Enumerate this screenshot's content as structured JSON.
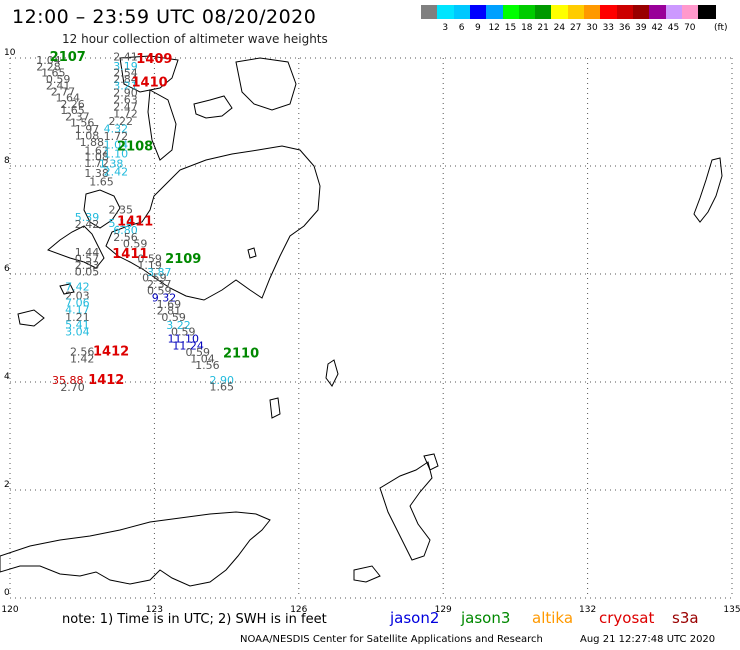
{
  "header": {
    "title": "12:00 – 23:59 UTC 08/20/2020",
    "subtitle": "12 hour collection of altimeter wave heights"
  },
  "scale": {
    "unit": "(ft)",
    "levels": [
      {
        "label": "",
        "color": "#808080"
      },
      {
        "label": "3",
        "color": "#00e5ff"
      },
      {
        "label": "6",
        "color": "#00c8ff"
      },
      {
        "label": "9",
        "color": "#0000ff"
      },
      {
        "label": "12",
        "color": "#00a0ff"
      },
      {
        "label": "15",
        "color": "#00ff00"
      },
      {
        "label": "18",
        "color": "#00cc00"
      },
      {
        "label": "21",
        "color": "#009900"
      },
      {
        "label": "24",
        "color": "#ffff00"
      },
      {
        "label": "27",
        "color": "#ffcc00"
      },
      {
        "label": "30",
        "color": "#ff9900"
      },
      {
        "label": "33",
        "color": "#ff0000"
      },
      {
        "label": "36",
        "color": "#cc0000"
      },
      {
        "label": "39",
        "color": "#990000"
      },
      {
        "label": "42",
        "color": "#990099"
      },
      {
        "label": "45",
        "color": "#cc99ff"
      },
      {
        "label": "70",
        "color": "#ff99cc"
      },
      {
        "label": "",
        "color": "#000000"
      }
    ]
  },
  "axes": {
    "lon_ticks": [
      "120",
      "123",
      "126",
      "129",
      "132",
      "135"
    ],
    "lat_ticks": [
      "0",
      "2",
      "4",
      "6",
      "8",
      "10"
    ]
  },
  "map": {
    "readings": [
      {
        "text": "1.04",
        "lon": 120.8,
        "lat": 9.89,
        "color": "#555555"
      },
      {
        "text": "2.28",
        "lon": 120.8,
        "lat": 9.77,
        "color": "#555555"
      },
      {
        "text": "1.65",
        "lon": 120.9,
        "lat": 9.66,
        "color": "#555555"
      },
      {
        "text": "0.59",
        "lon": 121.0,
        "lat": 9.54,
        "color": "#555555"
      },
      {
        "text": "2.41",
        "lon": 121.0,
        "lat": 9.42,
        "color": "#555555"
      },
      {
        "text": "2.77",
        "lon": 121.1,
        "lat": 9.31,
        "color": "#555555"
      },
      {
        "text": "1.64",
        "lon": 121.2,
        "lat": 9.19,
        "color": "#555555"
      },
      {
        "text": "2.26",
        "lon": 121.3,
        "lat": 9.07,
        "color": "#555555"
      },
      {
        "text": "1.65",
        "lon": 121.3,
        "lat": 8.96,
        "color": "#555555"
      },
      {
        "text": "2.37",
        "lon": 121.4,
        "lat": 8.84,
        "color": "#555555"
      },
      {
        "text": "1.56",
        "lon": 121.5,
        "lat": 8.73,
        "color": "#555555"
      },
      {
        "text": "1.97",
        "lon": 121.6,
        "lat": 8.61,
        "color": "#555555"
      },
      {
        "text": "1.08",
        "lon": 121.6,
        "lat": 8.49,
        "color": "#555555"
      },
      {
        "text": "1.88",
        "lon": 121.7,
        "lat": 8.37,
        "color": "#555555"
      },
      {
        "text": "1.62",
        "lon": 121.8,
        "lat": 8.21,
        "color": "#555555"
      },
      {
        "text": "1.08",
        "lon": 121.8,
        "lat": 8.1,
        "color": "#555555"
      },
      {
        "text": "1.72",
        "lon": 121.8,
        "lat": 7.98,
        "color": "#555555"
      },
      {
        "text": "1.38",
        "lon": 121.8,
        "lat": 7.8,
        "color": "#555555"
      },
      {
        "text": "1.65",
        "lon": 121.9,
        "lat": 7.64,
        "color": "#555555"
      },
      {
        "text": "2.41",
        "lon": 122.4,
        "lat": 9.95,
        "color": "#555555"
      },
      {
        "text": "3.19",
        "lon": 122.4,
        "lat": 9.78,
        "color": "#22bbdd"
      },
      {
        "text": "2.54",
        "lon": 122.4,
        "lat": 9.66,
        "color": "#555555"
      },
      {
        "text": "2.84",
        "lon": 122.4,
        "lat": 9.54,
        "color": "#555555"
      },
      {
        "text": "3.21",
        "lon": 122.4,
        "lat": 9.42,
        "color": "#22bbdd"
      },
      {
        "text": "2.90",
        "lon": 122.4,
        "lat": 9.29,
        "color": "#555555"
      },
      {
        "text": "2.63",
        "lon": 122.4,
        "lat": 9.16,
        "color": "#555555"
      },
      {
        "text": "2.47",
        "lon": 122.4,
        "lat": 9.03,
        "color": "#555555"
      },
      {
        "text": "1.72",
        "lon": 122.4,
        "lat": 8.9,
        "color": "#555555"
      },
      {
        "text": "2.22",
        "lon": 122.3,
        "lat": 8.76,
        "color": "#555555"
      },
      {
        "text": "4.32",
        "lon": 122.2,
        "lat": 8.62,
        "color": "#22bbdd"
      },
      {
        "text": "1.72",
        "lon": 122.2,
        "lat": 8.48,
        "color": "#555555"
      },
      {
        "text": "1.04",
        "lon": 122.2,
        "lat": 8.32,
        "color": "#22bbdd"
      },
      {
        "text": "1.10",
        "lon": 122.2,
        "lat": 8.16,
        "color": "#22bbdd"
      },
      {
        "text": "1.38",
        "lon": 122.1,
        "lat": 7.97,
        "color": "#22bbdd"
      },
      {
        "text": "2.42",
        "lon": 122.2,
        "lat": 7.82,
        "color": "#22bbdd"
      },
      {
        "text": "2.35",
        "lon": 122.3,
        "lat": 7.12,
        "color": "#555555"
      },
      {
        "text": "5.39",
        "lon": 121.6,
        "lat": 6.98,
        "color": "#22bbdd"
      },
      {
        "text": "5.14",
        "lon": 122.3,
        "lat": 6.87,
        "color": "#22bbdd"
      },
      {
        "text": "2.42",
        "lon": 121.6,
        "lat": 6.85,
        "color": "#555555"
      },
      {
        "text": "6.80",
        "lon": 122.4,
        "lat": 6.74,
        "color": "#22bbdd"
      },
      {
        "text": "2.56",
        "lon": 122.4,
        "lat": 6.61,
        "color": "#555555"
      },
      {
        "text": "0.59",
        "lon": 122.6,
        "lat": 6.49,
        "color": "#555555"
      },
      {
        "text": "1.44",
        "lon": 121.6,
        "lat": 6.33,
        "color": "#555555"
      },
      {
        "text": "0.57",
        "lon": 121.6,
        "lat": 6.21,
        "color": "#555555"
      },
      {
        "text": "2.33",
        "lon": 121.6,
        "lat": 6.09,
        "color": "#555555"
      },
      {
        "text": "0.05",
        "lon": 121.6,
        "lat": 5.97,
        "color": "#555555"
      },
      {
        "text": "0.59",
        "lon": 122.9,
        "lat": 6.21,
        "color": "#555555"
      },
      {
        "text": "1.19",
        "lon": 122.9,
        "lat": 6.09,
        "color": "#555555"
      },
      {
        "text": "3.87",
        "lon": 123.1,
        "lat": 5.96,
        "color": "#22bbdd"
      },
      {
        "text": "0.59",
        "lon": 123.0,
        "lat": 5.86,
        "color": "#555555"
      },
      {
        "text": "2.37",
        "lon": 123.1,
        "lat": 5.74,
        "color": "#555555"
      },
      {
        "text": "0.59",
        "lon": 123.1,
        "lat": 5.62,
        "color": "#555555"
      },
      {
        "text": "9.32",
        "lon": 123.2,
        "lat": 5.49,
        "color": "#0000bb"
      },
      {
        "text": "1.69",
        "lon": 123.3,
        "lat": 5.37,
        "color": "#555555"
      },
      {
        "text": "2.81",
        "lon": 123.3,
        "lat": 5.25,
        "color": "#555555"
      },
      {
        "text": "0.59",
        "lon": 123.4,
        "lat": 5.13,
        "color": "#555555"
      },
      {
        "text": "3.22",
        "lon": 123.5,
        "lat": 4.98,
        "color": "#22bbdd"
      },
      {
        "text": "0.59",
        "lon": 123.6,
        "lat": 4.86,
        "color": "#555555"
      },
      {
        "text": "11.10",
        "lon": 123.6,
        "lat": 4.73,
        "color": "#0000bb"
      },
      {
        "text": "11.24",
        "lon": 123.7,
        "lat": 4.6,
        "color": "#0000bb"
      },
      {
        "text": "0.59",
        "lon": 123.9,
        "lat": 4.48,
        "color": "#555555"
      },
      {
        "text": "1.04",
        "lon": 124.0,
        "lat": 4.36,
        "color": "#555555"
      },
      {
        "text": "1.56",
        "lon": 124.1,
        "lat": 4.24,
        "color": "#555555"
      },
      {
        "text": "7.42",
        "lon": 121.4,
        "lat": 5.69,
        "color": "#22bbdd"
      },
      {
        "text": "2.03",
        "lon": 121.4,
        "lat": 5.53,
        "color": "#555555"
      },
      {
        "text": "7.06",
        "lon": 121.4,
        "lat": 5.4,
        "color": "#22bbdd"
      },
      {
        "text": "4.17",
        "lon": 121.4,
        "lat": 5.27,
        "color": "#22bbdd"
      },
      {
        "text": "1.21",
        "lon": 121.4,
        "lat": 5.13,
        "color": "#555555"
      },
      {
        "text": "5.41",
        "lon": 121.4,
        "lat": 4.99,
        "color": "#22bbdd"
      },
      {
        "text": "3.04",
        "lon": 121.4,
        "lat": 4.86,
        "color": "#22bbdd"
      },
      {
        "text": "2.56",
        "lon": 121.5,
        "lat": 4.49,
        "color": "#555555"
      },
      {
        "text": "1.42",
        "lon": 121.5,
        "lat": 4.36,
        "color": "#555555"
      },
      {
        "text": "2.90",
        "lon": 124.4,
        "lat": 3.96,
        "color": "#22bbdd"
      },
      {
        "text": "1.65",
        "lon": 124.4,
        "lat": 3.84,
        "color": "#555555"
      },
      {
        "text": "35.88",
        "lon": 121.2,
        "lat": 3.96,
        "color": "#cc0000"
      },
      {
        "text": "2.70",
        "lon": 121.3,
        "lat": 3.83,
        "color": "#555555"
      }
    ],
    "orbits": [
      {
        "text": "2107",
        "lon": 121.2,
        "lat": 9.94,
        "color": "#008800"
      },
      {
        "text": "1409",
        "lon": 123.0,
        "lat": 9.91,
        "color": "#dd0000"
      },
      {
        "text": "1410",
        "lon": 122.9,
        "lat": 9.47,
        "color": "#dd0000"
      },
      {
        "text": "2108",
        "lon": 122.6,
        "lat": 8.29,
        "color": "#008800"
      },
      {
        "text": "1411",
        "lon": 122.6,
        "lat": 6.9,
        "color": "#dd0000"
      },
      {
        "text": "1411",
        "lon": 122.5,
        "lat": 6.3,
        "color": "#dd0000"
      },
      {
        "text": "2109",
        "lon": 123.6,
        "lat": 6.2,
        "color": "#008800"
      },
      {
        "text": "1412",
        "lon": 122.1,
        "lat": 4.49,
        "color": "#dd0000"
      },
      {
        "text": "2110",
        "lon": 124.8,
        "lat": 4.45,
        "color": "#008800"
      },
      {
        "text": "1412",
        "lon": 122.0,
        "lat": 3.96,
        "color": "#dd0000"
      }
    ]
  },
  "footer": {
    "note": "note:  1) Time is in UTC;  2) SWH is in feet",
    "satellites": [
      {
        "name": "jason2",
        "color": "#0000dd"
      },
      {
        "name": "jason3",
        "color": "#008800"
      },
      {
        "name": "altika",
        "color": "#ff9900"
      },
      {
        "name": "cryosat",
        "color": "#dd0000"
      },
      {
        "name": "s3a",
        "color": "#990000"
      }
    ],
    "credit": "NOAA/NESDIS Center for Satellite Applications and Research",
    "timestamp": "Aug 21 12:27:48 UTC 2020"
  }
}
